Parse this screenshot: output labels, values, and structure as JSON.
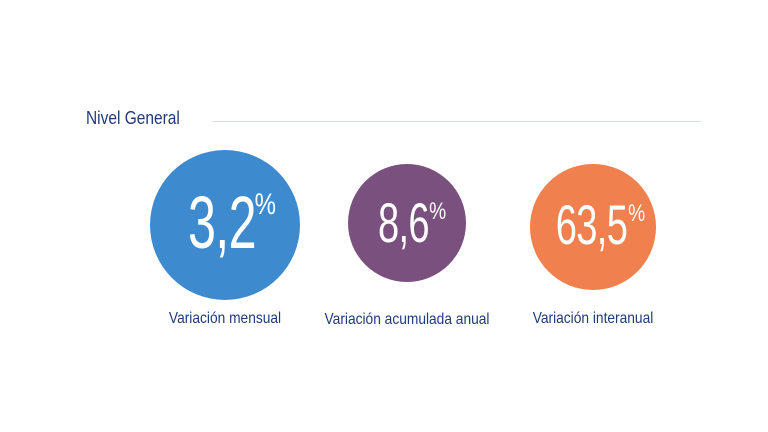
{
  "section": {
    "title": "Nivel General"
  },
  "stats": [
    {
      "value": "3,2",
      "unit": "%",
      "label": "Variación mensual",
      "color": "#3d8ace"
    },
    {
      "value": "8,6",
      "unit": "%",
      "label": "Variación acumulada anual",
      "color": "#7a507f"
    },
    {
      "value": "63,5",
      "unit": "%",
      "label": "Variación interanual",
      "color": "#f0804e"
    }
  ],
  "colors": {
    "title": "#1f3b7a",
    "rule": "#d5dde8",
    "background": "#ffffff"
  }
}
